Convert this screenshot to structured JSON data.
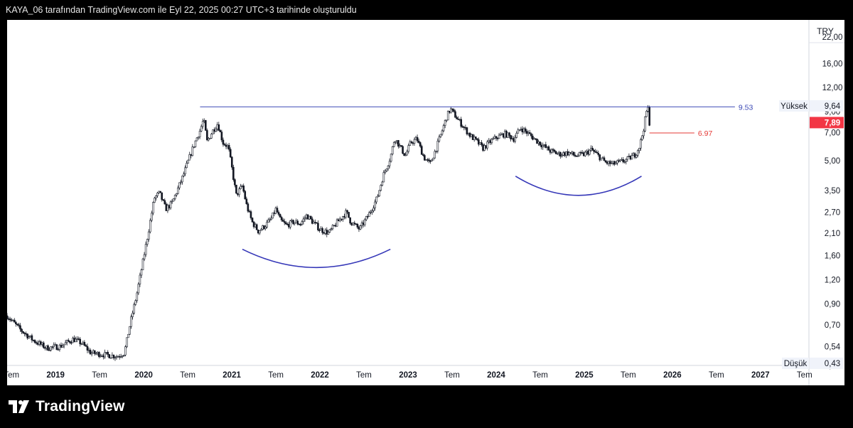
{
  "header": {
    "caption": "KAYA_06 tarafından TradingView.com ile Eyl 22, 2025 00:27 UTC+3 tarihinde oluşturuldu"
  },
  "footer": {
    "brand": "TradingView"
  },
  "chart_data": {
    "type": "candlestick",
    "currency": "TRY",
    "y_scale": "log",
    "ylim": [
      0.43,
      27.0
    ],
    "y_ticks": [
      "22,00",
      "16,00",
      "12,00",
      "9,00",
      "7,00",
      "5,00",
      "3,50",
      "2,70",
      "2,10",
      "1,60",
      "1,20",
      "0,90",
      "0,70",
      "0,54",
      "0,43"
    ],
    "x_ticks": [
      {
        "label": "Tem",
        "date": 2018.5
      },
      {
        "label": "2019",
        "date": 2019.0
      },
      {
        "label": "Tem",
        "date": 2019.5
      },
      {
        "label": "2020",
        "date": 2020.0
      },
      {
        "label": "Tem",
        "date": 2020.5
      },
      {
        "label": "2021",
        "date": 2021.0
      },
      {
        "label": "Tem",
        "date": 2021.5
      },
      {
        "label": "2022",
        "date": 2022.0
      },
      {
        "label": "Tem",
        "date": 2022.5
      },
      {
        "label": "2023",
        "date": 2023.0
      },
      {
        "label": "Tem",
        "date": 2023.5
      },
      {
        "label": "2024",
        "date": 2024.0
      },
      {
        "label": "Tem",
        "date": 2024.5
      },
      {
        "label": "2025",
        "date": 2025.0
      },
      {
        "label": "Tem",
        "date": 2025.5
      },
      {
        "label": "2026",
        "date": 2026.0
      },
      {
        "label": "Tem",
        "date": 2026.5
      },
      {
        "label": "2027",
        "date": 2027.0
      },
      {
        "label": "Tem",
        "date": 2027.5
      }
    ],
    "xlim": [
      2018.45,
      2027.55
    ],
    "series": [
      {
        "price_path": [
          [
            2018.45,
            0.78
          ],
          [
            2018.6,
            0.66
          ],
          [
            2018.75,
            0.58
          ],
          [
            2018.9,
            0.53
          ],
          [
            2019.05,
            0.54
          ],
          [
            2019.2,
            0.59
          ],
          [
            2019.3,
            0.56
          ],
          [
            2019.4,
            0.5
          ],
          [
            2019.55,
            0.49
          ],
          [
            2019.7,
            0.48
          ],
          [
            2019.78,
            0.5
          ],
          [
            2019.85,
            0.72
          ],
          [
            2019.92,
            1.0
          ],
          [
            2019.98,
            1.4
          ],
          [
            2020.05,
            2.1
          ],
          [
            2020.12,
            3.2
          ],
          [
            2020.18,
            3.4
          ],
          [
            2020.25,
            2.8
          ],
          [
            2020.32,
            3.0
          ],
          [
            2020.38,
            3.5
          ],
          [
            2020.45,
            4.2
          ],
          [
            2020.52,
            5.2
          ],
          [
            2020.58,
            6.2
          ],
          [
            2020.64,
            7.2
          ],
          [
            2020.68,
            8.2
          ],
          [
            2020.72,
            6.3
          ],
          [
            2020.78,
            7.1
          ],
          [
            2020.84,
            7.8
          ],
          [
            2020.9,
            6.2
          ],
          [
            2020.96,
            5.9
          ],
          [
            2021.0,
            4.6
          ],
          [
            2021.05,
            3.3
          ],
          [
            2021.12,
            3.7
          ],
          [
            2021.17,
            2.9
          ],
          [
            2021.23,
            2.4
          ],
          [
            2021.3,
            2.15
          ],
          [
            2021.38,
            2.3
          ],
          [
            2021.45,
            2.5
          ],
          [
            2021.5,
            2.8
          ],
          [
            2021.55,
            2.45
          ],
          [
            2021.62,
            2.3
          ],
          [
            2021.7,
            2.4
          ],
          [
            2021.78,
            2.35
          ],
          [
            2021.85,
            2.6
          ],
          [
            2021.9,
            2.45
          ],
          [
            2022.0,
            2.2
          ],
          [
            2022.1,
            2.1
          ],
          [
            2022.2,
            2.4
          ],
          [
            2022.3,
            2.7
          ],
          [
            2022.35,
            2.4
          ],
          [
            2022.45,
            2.2
          ],
          [
            2022.55,
            2.6
          ],
          [
            2022.65,
            3.2
          ],
          [
            2022.72,
            4.2
          ],
          [
            2022.8,
            5.2
          ],
          [
            2022.85,
            6.6
          ],
          [
            2022.9,
            6.0
          ],
          [
            2022.97,
            5.3
          ],
          [
            2023.03,
            6.2
          ],
          [
            2023.1,
            6.5
          ],
          [
            2023.18,
            5.2
          ],
          [
            2023.25,
            4.8
          ],
          [
            2023.32,
            5.8
          ],
          [
            2023.38,
            7.0
          ],
          [
            2023.44,
            8.5
          ],
          [
            2023.48,
            9.3
          ],
          [
            2023.55,
            8.4
          ],
          [
            2023.62,
            7.6
          ],
          [
            2023.7,
            6.8
          ],
          [
            2023.78,
            6.3
          ],
          [
            2023.85,
            5.8
          ],
          [
            2023.92,
            6.2
          ],
          [
            2024.0,
            6.6
          ],
          [
            2024.1,
            6.9
          ],
          [
            2024.2,
            6.5
          ],
          [
            2024.28,
            7.4
          ],
          [
            2024.35,
            7.0
          ],
          [
            2024.45,
            6.4
          ],
          [
            2024.55,
            5.9
          ],
          [
            2024.62,
            5.6
          ],
          [
            2024.72,
            5.4
          ],
          [
            2024.82,
            5.5
          ],
          [
            2024.9,
            5.3
          ],
          [
            2025.0,
            5.4
          ],
          [
            2025.08,
            5.7
          ],
          [
            2025.16,
            5.3
          ],
          [
            2025.24,
            4.9
          ],
          [
            2025.32,
            4.8
          ],
          [
            2025.4,
            4.9
          ],
          [
            2025.5,
            5.1
          ],
          [
            2025.58,
            5.4
          ],
          [
            2025.63,
            6.0
          ],
          [
            2025.67,
            7.2
          ],
          [
            2025.7,
            8.7
          ],
          [
            2025.72,
            9.6
          ],
          [
            2025.74,
            7.89
          ]
        ]
      }
    ],
    "annotations": {
      "resistance": {
        "value": 9.53,
        "label": "9.53",
        "from": 2020.64,
        "to": 2026.71,
        "color": "#3b48b5"
      },
      "support": {
        "value": 6.97,
        "label": "6.97",
        "from": 2025.74,
        "to": 2026.25,
        "color": "#e53935"
      },
      "arc_left": {
        "x_from": 2021.12,
        "x_to": 2022.8,
        "y_edge": 1.73,
        "y_bottom": 1.39,
        "color": "#3537b8"
      },
      "arc_right": {
        "x_from": 2024.22,
        "x_to": 2025.65,
        "y_edge": 4.15,
        "y_bottom": 3.3,
        "color": "#3537b8"
      }
    },
    "price_labels": {
      "high": {
        "label": "Yüksek",
        "value": 9.64,
        "text": "9,64"
      },
      "last": {
        "value": 7.89,
        "text": "7,89",
        "color": "#f23645"
      },
      "low": {
        "label": "Düşük",
        "value": 0.43,
        "text": "0,43"
      }
    }
  }
}
